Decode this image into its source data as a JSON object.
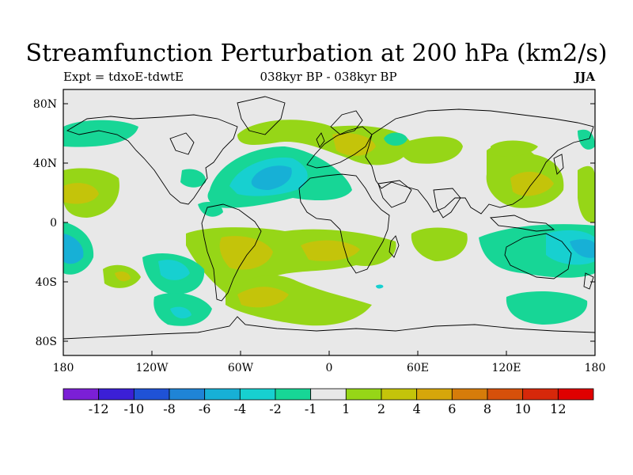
{
  "title": "Streamfunction Perturbation at 200 hPa (km2/s)",
  "expt_label": "Expt = tdxoE-tdwtE",
  "period_label": "038kyr BP - 038kyr BP",
  "season": "JJA",
  "map": {
    "lat_ticks": [
      "80N",
      "40N",
      "0",
      "40S",
      "80S"
    ],
    "lon_ticks": [
      "180",
      "120W",
      "60W",
      "0",
      "60E",
      "120E",
      "180"
    ]
  },
  "colorbar": {
    "labels": [
      "-12",
      "-10",
      "-8",
      "-6",
      "-4",
      "-2",
      "-1",
      "1",
      "2",
      "4",
      "6",
      "8",
      "10",
      "12"
    ],
    "colors": [
      "#7b1fd6",
      "#3b1fd6",
      "#1f52d6",
      "#1f84d6",
      "#17b0d6",
      "#17d0d0",
      "#17d696",
      "#e8e8e8",
      "#96d617",
      "#c4c40a",
      "#d6a60a",
      "#d67c0a",
      "#d6500a",
      "#d6280a",
      "#e00000"
    ]
  },
  "palette": {
    "background": "#e8e8e8",
    "coast": "#000000"
  }
}
